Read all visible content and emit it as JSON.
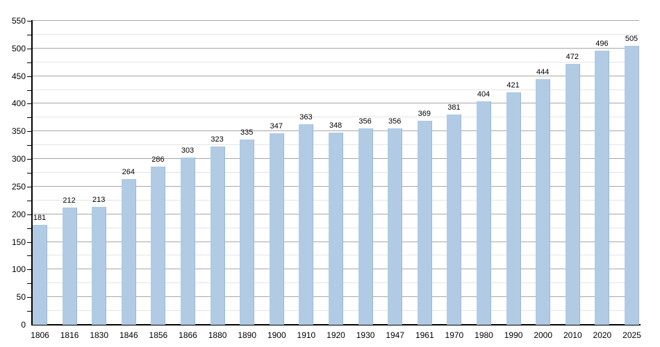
{
  "chart_data": {
    "type": "bar",
    "title": "",
    "xlabel": "",
    "ylabel": "",
    "categories": [
      "1806",
      "1816",
      "1830",
      "1846",
      "1856",
      "1866",
      "1880",
      "1890",
      "1900",
      "1910",
      "1920",
      "1930",
      "1947",
      "1961",
      "1970",
      "1980",
      "1990",
      "2000",
      "2010",
      "2020",
      "2025"
    ],
    "values": [
      181,
      212,
      213,
      264,
      286,
      303,
      323,
      335,
      347,
      363,
      348,
      356,
      356,
      369,
      381,
      404,
      421,
      444,
      472,
      496,
      505
    ],
    "ylim": [
      0,
      550
    ],
    "y_major_step": 50,
    "y_minor_step": 25,
    "grid": true,
    "legend": false,
    "colors": {
      "bar_fill": "#b0cbe3",
      "bar_edge": "#9db8d3",
      "major_grid": "#a6a6a6",
      "minor_grid": "#e4e4e4",
      "axis": "#000000",
      "text": "#000000",
      "background": "#ffffff"
    }
  }
}
